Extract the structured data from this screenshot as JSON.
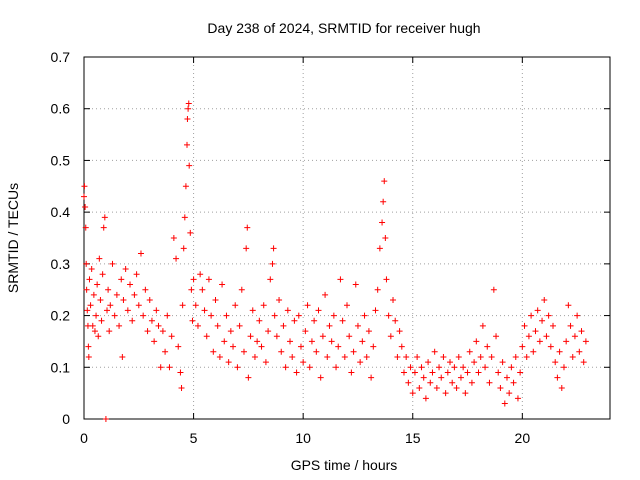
{
  "chart_data": {
    "type": "scatter",
    "title": "Day 238 of 2024, SRMTID for receiver hugh",
    "xlabel": "GPS time / hours",
    "ylabel": "SRMTID / TECUs",
    "xlim": [
      0,
      24
    ],
    "ylim": [
      0,
      0.7
    ],
    "xticks": [
      0,
      5,
      10,
      15,
      20
    ],
    "yticks": [
      0,
      0.1,
      0.2,
      0.3,
      0.4,
      0.5,
      0.6,
      0.7
    ],
    "xtick_labels": [
      "0",
      "5",
      "10",
      "15",
      "20"
    ],
    "ytick_labels": [
      "0",
      "0.1",
      "0.2",
      "0.3",
      "0.4",
      "0.5",
      "0.6",
      "0.7"
    ],
    "grid": true,
    "marker": "plus",
    "color": "#ff0000",
    "series": [
      {
        "name": "SRMTID",
        "points": [
          [
            0.0,
            0.43
          ],
          [
            0.02,
            0.45
          ],
          [
            0.05,
            0.41
          ],
          [
            0.08,
            0.37
          ],
          [
            0.1,
            0.3
          ],
          [
            0.12,
            0.25
          ],
          [
            0.15,
            0.21
          ],
          [
            0.18,
            0.18
          ],
          [
            0.2,
            0.14
          ],
          [
            0.22,
            0.12
          ],
          [
            0.25,
            0.27
          ],
          [
            0.3,
            0.22
          ],
          [
            0.35,
            0.29
          ],
          [
            0.4,
            0.18
          ],
          [
            0.45,
            0.24
          ],
          [
            0.5,
            0.17
          ],
          [
            0.55,
            0.2
          ],
          [
            0.6,
            0.26
          ],
          [
            0.65,
            0.16
          ],
          [
            0.7,
            0.31
          ],
          [
            0.75,
            0.23
          ],
          [
            0.8,
            0.19
          ],
          [
            0.85,
            0.28
          ],
          [
            0.9,
            0.37
          ],
          [
            0.95,
            0.39
          ],
          [
            1.0,
            0.0
          ],
          [
            1.05,
            0.21
          ],
          [
            1.1,
            0.25
          ],
          [
            1.15,
            0.17
          ],
          [
            1.2,
            0.22
          ],
          [
            1.3,
            0.3
          ],
          [
            1.4,
            0.2
          ],
          [
            1.5,
            0.24
          ],
          [
            1.6,
            0.18
          ],
          [
            1.7,
            0.27
          ],
          [
            1.75,
            0.12
          ],
          [
            1.8,
            0.23
          ],
          [
            1.9,
            0.29
          ],
          [
            2.0,
            0.21
          ],
          [
            2.1,
            0.26
          ],
          [
            2.2,
            0.19
          ],
          [
            2.3,
            0.24
          ],
          [
            2.4,
            0.28
          ],
          [
            2.5,
            0.22
          ],
          [
            2.6,
            0.32
          ],
          [
            2.7,
            0.2
          ],
          [
            2.8,
            0.25
          ],
          [
            2.9,
            0.17
          ],
          [
            3.0,
            0.23
          ],
          [
            3.1,
            0.19
          ],
          [
            3.2,
            0.15
          ],
          [
            3.3,
            0.21
          ],
          [
            3.4,
            0.18
          ],
          [
            3.5,
            0.1
          ],
          [
            3.6,
            0.17
          ],
          [
            3.7,
            0.13
          ],
          [
            3.8,
            0.2
          ],
          [
            3.9,
            0.1
          ],
          [
            4.0,
            0.16
          ],
          [
            4.1,
            0.35
          ],
          [
            4.2,
            0.31
          ],
          [
            4.3,
            0.14
          ],
          [
            4.4,
            0.09
          ],
          [
            4.45,
            0.06
          ],
          [
            4.5,
            0.22
          ],
          [
            4.55,
            0.33
          ],
          [
            4.6,
            0.39
          ],
          [
            4.65,
            0.45
          ],
          [
            4.7,
            0.53
          ],
          [
            4.72,
            0.58
          ],
          [
            4.75,
            0.6
          ],
          [
            4.78,
            0.61
          ],
          [
            4.8,
            0.49
          ],
          [
            4.85,
            0.36
          ],
          [
            4.9,
            0.25
          ],
          [
            4.95,
            0.19
          ],
          [
            5.0,
            0.27
          ],
          [
            5.1,
            0.22
          ],
          [
            5.2,
            0.18
          ],
          [
            5.3,
            0.28
          ],
          [
            5.4,
            0.25
          ],
          [
            5.5,
            0.21
          ],
          [
            5.6,
            0.16
          ],
          [
            5.7,
            0.27
          ],
          [
            5.8,
            0.2
          ],
          [
            5.9,
            0.13
          ],
          [
            6.0,
            0.23
          ],
          [
            6.1,
            0.18
          ],
          [
            6.2,
            0.12
          ],
          [
            6.3,
            0.26
          ],
          [
            6.4,
            0.15
          ],
          [
            6.5,
            0.2
          ],
          [
            6.6,
            0.11
          ],
          [
            6.7,
            0.17
          ],
          [
            6.8,
            0.14
          ],
          [
            6.9,
            0.22
          ],
          [
            7.0,
            0.1
          ],
          [
            7.1,
            0.18
          ],
          [
            7.2,
            0.25
          ],
          [
            7.3,
            0.13
          ],
          [
            7.4,
            0.33
          ],
          [
            7.45,
            0.37
          ],
          [
            7.5,
            0.08
          ],
          [
            7.6,
            0.16
          ],
          [
            7.7,
            0.21
          ],
          [
            7.8,
            0.12
          ],
          [
            7.9,
            0.15
          ],
          [
            8.0,
            0.19
          ],
          [
            8.1,
            0.14
          ],
          [
            8.2,
            0.22
          ],
          [
            8.3,
            0.11
          ],
          [
            8.4,
            0.17
          ],
          [
            8.5,
            0.27
          ],
          [
            8.6,
            0.3
          ],
          [
            8.65,
            0.33
          ],
          [
            8.7,
            0.2
          ],
          [
            8.8,
            0.16
          ],
          [
            8.9,
            0.23
          ],
          [
            9.0,
            0.13
          ],
          [
            9.1,
            0.18
          ],
          [
            9.2,
            0.1
          ],
          [
            9.3,
            0.21
          ],
          [
            9.4,
            0.15
          ],
          [
            9.5,
            0.12
          ],
          [
            9.6,
            0.19
          ],
          [
            9.7,
            0.09
          ],
          [
            9.8,
            0.2
          ],
          [
            9.9,
            0.14
          ],
          [
            10.0,
            0.11
          ],
          [
            10.1,
            0.17
          ],
          [
            10.2,
            0.22
          ],
          [
            10.3,
            0.1
          ],
          [
            10.4,
            0.15
          ],
          [
            10.5,
            0.19
          ],
          [
            10.6,
            0.13
          ],
          [
            10.7,
            0.21
          ],
          [
            10.8,
            0.08
          ],
          [
            10.9,
            0.16
          ],
          [
            11.0,
            0.24
          ],
          [
            11.1,
            0.12
          ],
          [
            11.2,
            0.18
          ],
          [
            11.3,
            0.15
          ],
          [
            11.4,
            0.2
          ],
          [
            11.5,
            0.1
          ],
          [
            11.6,
            0.14
          ],
          [
            11.7,
            0.27
          ],
          [
            11.8,
            0.19
          ],
          [
            11.9,
            0.12
          ],
          [
            12.0,
            0.22
          ],
          [
            12.1,
            0.16
          ],
          [
            12.2,
            0.09
          ],
          [
            12.3,
            0.13
          ],
          [
            12.4,
            0.26
          ],
          [
            12.5,
            0.18
          ],
          [
            12.6,
            0.11
          ],
          [
            12.7,
            0.15
          ],
          [
            12.8,
            0.2
          ],
          [
            12.9,
            0.12
          ],
          [
            13.0,
            0.17
          ],
          [
            13.1,
            0.08
          ],
          [
            13.2,
            0.14
          ],
          [
            13.3,
            0.21
          ],
          [
            13.4,
            0.25
          ],
          [
            13.5,
            0.33
          ],
          [
            13.6,
            0.38
          ],
          [
            13.65,
            0.42
          ],
          [
            13.7,
            0.46
          ],
          [
            13.75,
            0.35
          ],
          [
            13.8,
            0.27
          ],
          [
            13.9,
            0.2
          ],
          [
            14.0,
            0.16
          ],
          [
            14.1,
            0.23
          ],
          [
            14.2,
            0.19
          ],
          [
            14.3,
            0.12
          ],
          [
            14.4,
            0.17
          ],
          [
            14.5,
            0.14
          ],
          [
            14.6,
            0.09
          ],
          [
            14.7,
            0.12
          ],
          [
            14.8,
            0.07
          ],
          [
            14.9,
            0.1
          ],
          [
            15.0,
            0.05
          ],
          [
            15.1,
            0.09
          ],
          [
            15.2,
            0.12
          ],
          [
            15.3,
            0.06
          ],
          [
            15.4,
            0.1
          ],
          [
            15.5,
            0.08
          ],
          [
            15.6,
            0.04
          ],
          [
            15.7,
            0.11
          ],
          [
            15.8,
            0.07
          ],
          [
            15.9,
            0.09
          ],
          [
            16.0,
            0.13
          ],
          [
            16.1,
            0.06
          ],
          [
            16.2,
            0.1
          ],
          [
            16.3,
            0.08
          ],
          [
            16.4,
            0.12
          ],
          [
            16.5,
            0.05
          ],
          [
            16.6,
            0.09
          ],
          [
            16.7,
            0.11
          ],
          [
            16.8,
            0.07
          ],
          [
            16.9,
            0.1
          ],
          [
            17.0,
            0.06
          ],
          [
            17.1,
            0.12
          ],
          [
            17.2,
            0.08
          ],
          [
            17.3,
            0.1
          ],
          [
            17.4,
            0.05
          ],
          [
            17.5,
            0.09
          ],
          [
            17.6,
            0.13
          ],
          [
            17.7,
            0.07
          ],
          [
            17.8,
            0.11
          ],
          [
            17.9,
            0.15
          ],
          [
            18.0,
            0.09
          ],
          [
            18.1,
            0.12
          ],
          [
            18.2,
            0.18
          ],
          [
            18.3,
            0.1
          ],
          [
            18.4,
            0.14
          ],
          [
            18.5,
            0.07
          ],
          [
            18.6,
            0.12
          ],
          [
            18.7,
            0.25
          ],
          [
            18.8,
            0.16
          ],
          [
            18.9,
            0.09
          ],
          [
            19.0,
            0.06
          ],
          [
            19.1,
            0.11
          ],
          [
            19.2,
            0.03
          ],
          [
            19.3,
            0.08
          ],
          [
            19.4,
            0.05
          ],
          [
            19.5,
            0.1
          ],
          [
            19.6,
            0.07
          ],
          [
            19.7,
            0.12
          ],
          [
            19.8,
            0.04
          ],
          [
            19.9,
            0.09
          ],
          [
            20.0,
            0.14
          ],
          [
            20.1,
            0.18
          ],
          [
            20.2,
            0.12
          ],
          [
            20.3,
            0.16
          ],
          [
            20.4,
            0.2
          ],
          [
            20.5,
            0.13
          ],
          [
            20.6,
            0.17
          ],
          [
            20.7,
            0.21
          ],
          [
            20.8,
            0.15
          ],
          [
            20.9,
            0.19
          ],
          [
            21.0,
            0.23
          ],
          [
            21.1,
            0.16
          ],
          [
            21.2,
            0.2
          ],
          [
            21.3,
            0.14
          ],
          [
            21.4,
            0.18
          ],
          [
            21.5,
            0.11
          ],
          [
            21.6,
            0.08
          ],
          [
            21.7,
            0.13
          ],
          [
            21.8,
            0.06
          ],
          [
            21.9,
            0.1
          ],
          [
            22.0,
            0.15
          ],
          [
            22.1,
            0.22
          ],
          [
            22.2,
            0.18
          ],
          [
            22.3,
            0.12
          ],
          [
            22.4,
            0.16
          ],
          [
            22.5,
            0.2
          ],
          [
            22.6,
            0.13
          ],
          [
            22.7,
            0.17
          ],
          [
            22.8,
            0.11
          ],
          [
            22.9,
            0.15
          ]
        ]
      }
    ]
  }
}
